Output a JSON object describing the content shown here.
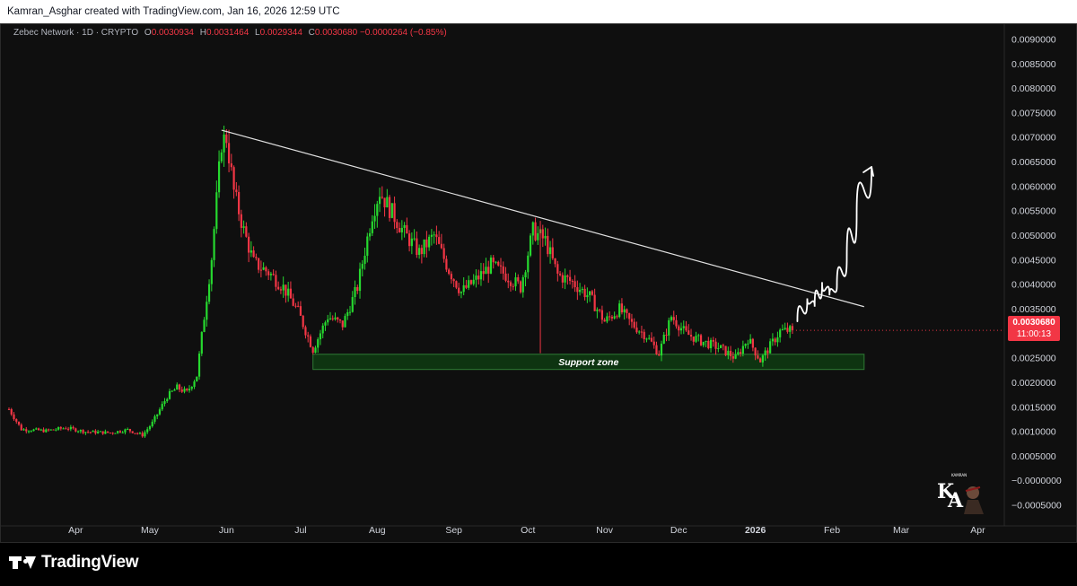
{
  "header": {
    "text": "Kamran_Asghar created with TradingView.com, Jan 16, 2026 12:59 UTC"
  },
  "legend": {
    "symbol": "Zebec Network · 1D · CRYPTO",
    "o_label": "O",
    "o_value": "0.0030934",
    "h_label": "H",
    "h_value": "0.0031464",
    "l_label": "L",
    "l_value": "0.0029344",
    "c_label": "C",
    "c_value": "0.0030680",
    "change": "−0.0000264 (−0.85%)"
  },
  "price_badge": {
    "price": "0.0030680",
    "countdown": "11:00:13"
  },
  "footer": {
    "brand": "TradingView"
  },
  "colors": {
    "background": "#0f0f0f",
    "up": "#26d92f",
    "down": "#f23645",
    "support_fill": "#0e3b12",
    "support_border": "#2f7a34",
    "trendline": "#e0e0e0",
    "badge": "#f23645"
  },
  "chart_data": {
    "type": "candlestick",
    "title": "Zebec Network · 1D · CRYPTO",
    "ylim": [
      -0.0007,
      0.0092
    ],
    "y_ticks": [
      "0.0090000",
      "0.0085000",
      "0.0080000",
      "0.0075000",
      "0.0070000",
      "0.0065000",
      "0.0060000",
      "0.0055000",
      "0.0050000",
      "0.0045000",
      "0.0040000",
      "0.0035000",
      "0.0030000",
      "0.0025000",
      "0.0020000",
      "0.0015000",
      "0.0010000",
      "0.0005000",
      "−0.0000000",
      "−0.0005000"
    ],
    "y_tick_values": [
      0.009,
      0.0085,
      0.008,
      0.0075,
      0.007,
      0.0065,
      0.006,
      0.0055,
      0.005,
      0.0045,
      0.004,
      0.0035,
      0.003,
      0.0025,
      0.002,
      0.0015,
      0.001,
      0.0005,
      0,
      -0.0005
    ],
    "x_ticks": [
      "Apr",
      "May",
      "Jun",
      "Jul",
      "Aug",
      "Sep",
      "Oct",
      "Nov",
      "Dec",
      "2026",
      "Feb",
      "Mar",
      "Apr"
    ],
    "x_tick_dates": [
      "2025-04-01",
      "2025-05-01",
      "2025-06-01",
      "2025-07-01",
      "2025-08-01",
      "2025-09-01",
      "2025-10-01",
      "2025-11-01",
      "2025-12-01",
      "2026-01-01",
      "2026-02-01",
      "2026-03-01",
      "2026-04-01"
    ],
    "x_range": [
      "2025-03-05",
      "2026-04-11"
    ],
    "price_path": [
      [
        "2025-03-05",
        0.00146
      ],
      [
        "2025-03-10",
        0.00105
      ],
      [
        "2025-03-20",
        0.00102
      ],
      [
        "2025-03-28",
        0.00108
      ],
      [
        "2025-04-05",
        0.001
      ],
      [
        "2025-04-15",
        0.00098
      ],
      [
        "2025-04-22",
        0.00104
      ],
      [
        "2025-04-28",
        0.00093
      ],
      [
        "2025-05-02",
        0.00118
      ],
      [
        "2025-05-08",
        0.00172
      ],
      [
        "2025-05-12",
        0.0019
      ],
      [
        "2025-05-16",
        0.0018
      ],
      [
        "2025-05-20",
        0.00215
      ],
      [
        "2025-05-23",
        0.00335
      ],
      [
        "2025-05-26",
        0.00455
      ],
      [
        "2025-05-30",
        0.0069
      ],
      [
        "2025-06-01",
        0.007
      ],
      [
        "2025-06-04",
        0.0059
      ],
      [
        "2025-06-08",
        0.0051
      ],
      [
        "2025-06-12",
        0.00445
      ],
      [
        "2025-06-18",
        0.00425
      ],
      [
        "2025-06-24",
        0.00395
      ],
      [
        "2025-06-30",
        0.00345
      ],
      [
        "2025-07-06",
        0.00268
      ],
      [
        "2025-07-12",
        0.00335
      ],
      [
        "2025-07-18",
        0.00318
      ],
      [
        "2025-07-24",
        0.00395
      ],
      [
        "2025-07-30",
        0.00545
      ],
      [
        "2025-08-02",
        0.0059
      ],
      [
        "2025-08-06",
        0.00555
      ],
      [
        "2025-08-12",
        0.00505
      ],
      [
        "2025-08-18",
        0.00465
      ],
      [
        "2025-08-24",
        0.005
      ],
      [
        "2025-08-30",
        0.0043
      ],
      [
        "2025-09-04",
        0.00385
      ],
      [
        "2025-09-10",
        0.0041
      ],
      [
        "2025-09-16",
        0.0044
      ],
      [
        "2025-09-22",
        0.0042
      ],
      [
        "2025-09-28",
        0.00395
      ],
      [
        "2025-10-03",
        0.0051
      ],
      [
        "2025-10-08",
        0.0049
      ],
      [
        "2025-10-13",
        0.0042
      ],
      [
        "2025-10-19",
        0.00405
      ],
      [
        "2025-10-26",
        0.00375
      ],
      [
        "2025-11-01",
        0.00325
      ],
      [
        "2025-11-07",
        0.0035
      ],
      [
        "2025-11-12",
        0.0032
      ],
      [
        "2025-11-18",
        0.00295
      ],
      [
        "2025-11-23",
        0.0026
      ],
      [
        "2025-11-28",
        0.00335
      ],
      [
        "2025-12-04",
        0.003
      ],
      [
        "2025-12-10",
        0.00285
      ],
      [
        "2025-12-18",
        0.0027
      ],
      [
        "2025-12-24",
        0.0025
      ],
      [
        "2025-12-29",
        0.0029
      ],
      [
        "2026-01-03",
        0.00245
      ],
      [
        "2026-01-07",
        0.00275
      ],
      [
        "2026-01-11",
        0.00305
      ],
      [
        "2026-01-16",
        0.00307
      ]
    ],
    "last_close": 0.003068,
    "support_zone": {
      "label": "Support zone",
      "from": "2025-07-06",
      "to": "2026-02-14",
      "low": 0.00227,
      "high": 0.00258
    },
    "trendline": {
      "from": [
        "2025-05-30",
        0.00715
      ],
      "to": [
        "2026-02-14",
        0.00355
      ]
    },
    "projection_arrow": [
      [
        "2026-01-18",
        0.00325
      ],
      [
        "2026-01-22",
        0.00372
      ],
      [
        "2026-01-25",
        0.00355
      ],
      [
        "2026-01-28",
        0.00405
      ],
      [
        "2026-01-31",
        0.00378
      ],
      [
        "2026-02-03",
        0.00398
      ],
      [
        "2026-02-07",
        0.00455
      ],
      [
        "2026-02-11",
        0.00545
      ],
      [
        "2026-02-17",
        0.0064
      ]
    ],
    "grid": false,
    "legend_position": "top-left"
  }
}
